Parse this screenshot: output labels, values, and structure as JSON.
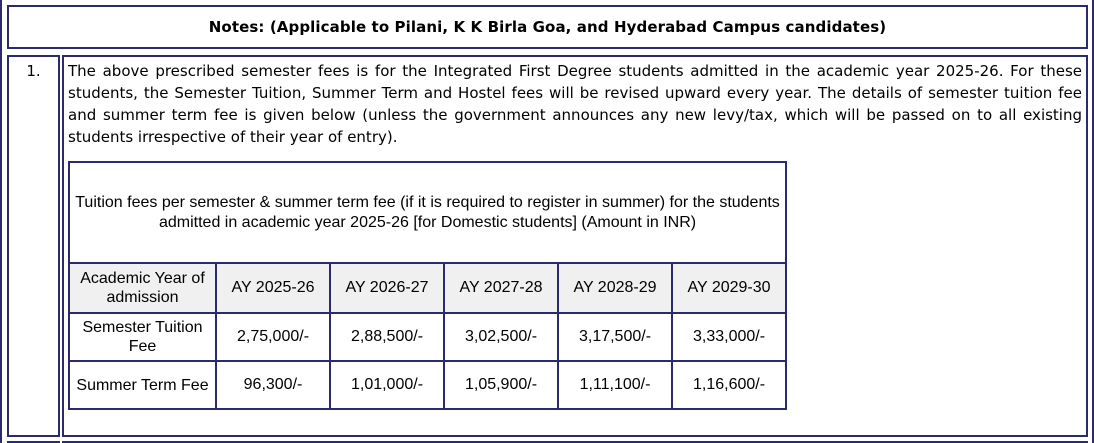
{
  "colors": {
    "border": "#2b2b6b",
    "table_header_bg": "#f0f0f0",
    "text": "#000000"
  },
  "notes_header": {
    "text": "Notes: (Applicable to Pilani, K K Birla Goa, and Hyderabad Campus candidates)"
  },
  "note_item": {
    "number": "1.",
    "paragraph": "The above prescribed semester fees is for the Integrated First Degree students admitted in the academic year 2025-26. For these students, the Semester Tuition, Summer Term and Hostel fees will be revised upward every year. The details of semester tuition fee and summer term fee is given below (unless the government announces any new levy/tax, which will be passed on to all existing students irrespective of their year of entry)."
  },
  "fee_table": {
    "caption": "Tuition fees per semester & summer term fee (if it is required to register in summer) for the students admitted in academic year 2025-26 [for Domestic students] (Amount in INR)",
    "columns": [
      "Academic Year of admission",
      "AY 2025-26",
      "AY 2026-27",
      "AY 2027-28",
      "AY 2028-29",
      "AY 2029-30"
    ],
    "rows": [
      {
        "label": "Semester Tuition Fee",
        "values": [
          "2,75,000/-",
          "2,88,500/-",
          "3,02,500/-",
          "3,17,500/-",
          "3,33,000/-"
        ]
      },
      {
        "label": "Summer Term Fee",
        "values": [
          "96,300/-",
          "1,01,000/-",
          "1,05,900/-",
          "1,11,100/-",
          "1,16,600/-"
        ]
      }
    ]
  }
}
